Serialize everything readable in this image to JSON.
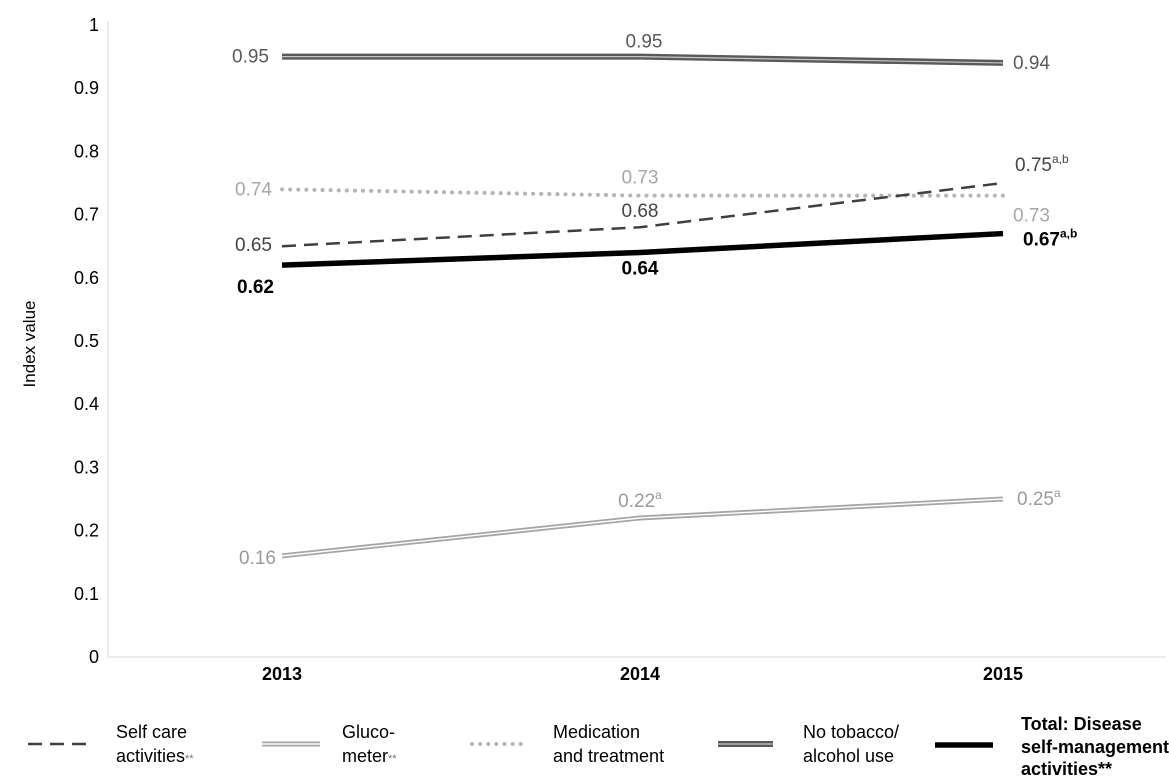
{
  "chart_data": {
    "type": "line",
    "ylabel": "Index value",
    "xlabel": "",
    "ylim": [
      0,
      1
    ],
    "yticks": [
      "0",
      "0.1",
      "0.2",
      "0.3",
      "0.4",
      "0.5",
      "0.6",
      "0.7",
      "0.8",
      "0.9",
      "1"
    ],
    "categories": [
      "2013",
      "2014",
      "2015"
    ],
    "grid": false,
    "legend_position": "bottom",
    "series": [
      {
        "name": "Self care activities**",
        "values": [
          0.65,
          0.68,
          0.75
        ],
        "labels": [
          {
            "text": "0.65",
            "sup": ""
          },
          {
            "text": "0.68",
            "sup": ""
          },
          {
            "text": "0.75",
            "sup": "a,b"
          }
        ],
        "style": "dashed",
        "color": "#3f3f3f",
        "label_color": "#444444"
      },
      {
        "name": "Glucometer**",
        "values": [
          0.16,
          0.22,
          0.25
        ],
        "labels": [
          {
            "text": "0.16",
            "sup": ""
          },
          {
            "text": "0.22",
            "sup": "a"
          },
          {
            "text": "0.25",
            "sup": "a"
          }
        ],
        "style": "double",
        "color": "#a6a6a6",
        "label_color": "#9a9a9a"
      },
      {
        "name": "Medication and treatment",
        "values": [
          0.74,
          0.73,
          0.73
        ],
        "labels": [
          {
            "text": "0.74",
            "sup": ""
          },
          {
            "text": "0.73",
            "sup": ""
          },
          {
            "text": "0.73",
            "sup": ""
          }
        ],
        "style": "dotted",
        "color": "#b5b5b5",
        "label_color": "#a6a6a6"
      },
      {
        "name": "No tobacco/ alcohol use",
        "values": [
          0.95,
          0.95,
          0.94
        ],
        "labels": [
          {
            "text": "0.95",
            "sup": ""
          },
          {
            "text": "0.95",
            "sup": ""
          },
          {
            "text": "0.94",
            "sup": ""
          }
        ],
        "style": "double-dark",
        "color": "#595959",
        "label_color": "#595959"
      },
      {
        "name": "Total: Disease self-management activities**",
        "values": [
          0.62,
          0.64,
          0.67
        ],
        "labels": [
          {
            "text": "0.62",
            "sup": ""
          },
          {
            "text": "0.64",
            "sup": ""
          },
          {
            "text": "0.67",
            "sup": "a,b"
          }
        ],
        "style": "thick",
        "color": "#000000",
        "label_color": "#000000"
      }
    ],
    "legend": [
      {
        "lines": [
          "Self care",
          "activities"
        ],
        "suffix": "**",
        "bold": false
      },
      {
        "lines": [
          "Gluco-",
          "meter"
        ],
        "suffix": "**",
        "bold": false
      },
      {
        "lines": [
          "Medication",
          "and treatment"
        ],
        "suffix": "",
        "bold": false
      },
      {
        "lines": [
          "No tobacco/",
          "alcohol use"
        ],
        "suffix": "",
        "bold": false
      },
      {
        "lines": [
          "Total: Disease",
          "self-management",
          "activities**"
        ],
        "suffix": "",
        "bold": true
      }
    ]
  }
}
